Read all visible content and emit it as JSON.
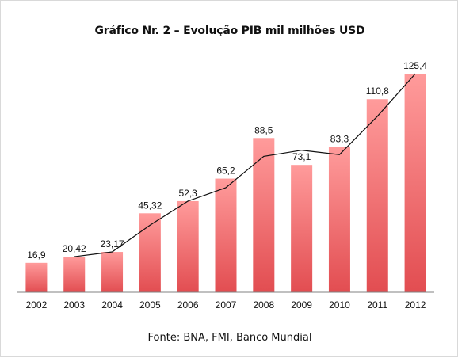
{
  "chart_data": {
    "type": "bar",
    "title": "Gráfico Nr. 2 – Evolução PIB mil milhões USD",
    "xlabel": "",
    "ylabel": "",
    "ylim": [
      0,
      140
    ],
    "categories": [
      "2002",
      "2003",
      "2004",
      "2005",
      "2006",
      "2007",
      "2008",
      "2009",
      "2010",
      "2011",
      "2012"
    ],
    "series": [
      {
        "type": "bar",
        "values": [
          16.9,
          20.42,
          23.17,
          45.32,
          52.3,
          65.2,
          88.5,
          73.1,
          83.3,
          110.8,
          125.4
        ],
        "data_labels": [
          "16,9",
          "20,42",
          "23,17",
          "45,32",
          "52,3",
          "65,2",
          "88,5",
          "73,1",
          "83,3",
          "110,8",
          "125,4"
        ],
        "color": "#e8565a"
      },
      {
        "type": "line",
        "values": [
          null,
          20.42,
          23.17,
          38.5,
          52.3,
          60.0,
          78.0,
          81.5,
          79.0,
          101.0,
          125.4
        ],
        "color": "#111111"
      }
    ],
    "grid": false,
    "legend": "none"
  },
  "source_text": "Fonte: BNA, FMI, Banco Mundial"
}
